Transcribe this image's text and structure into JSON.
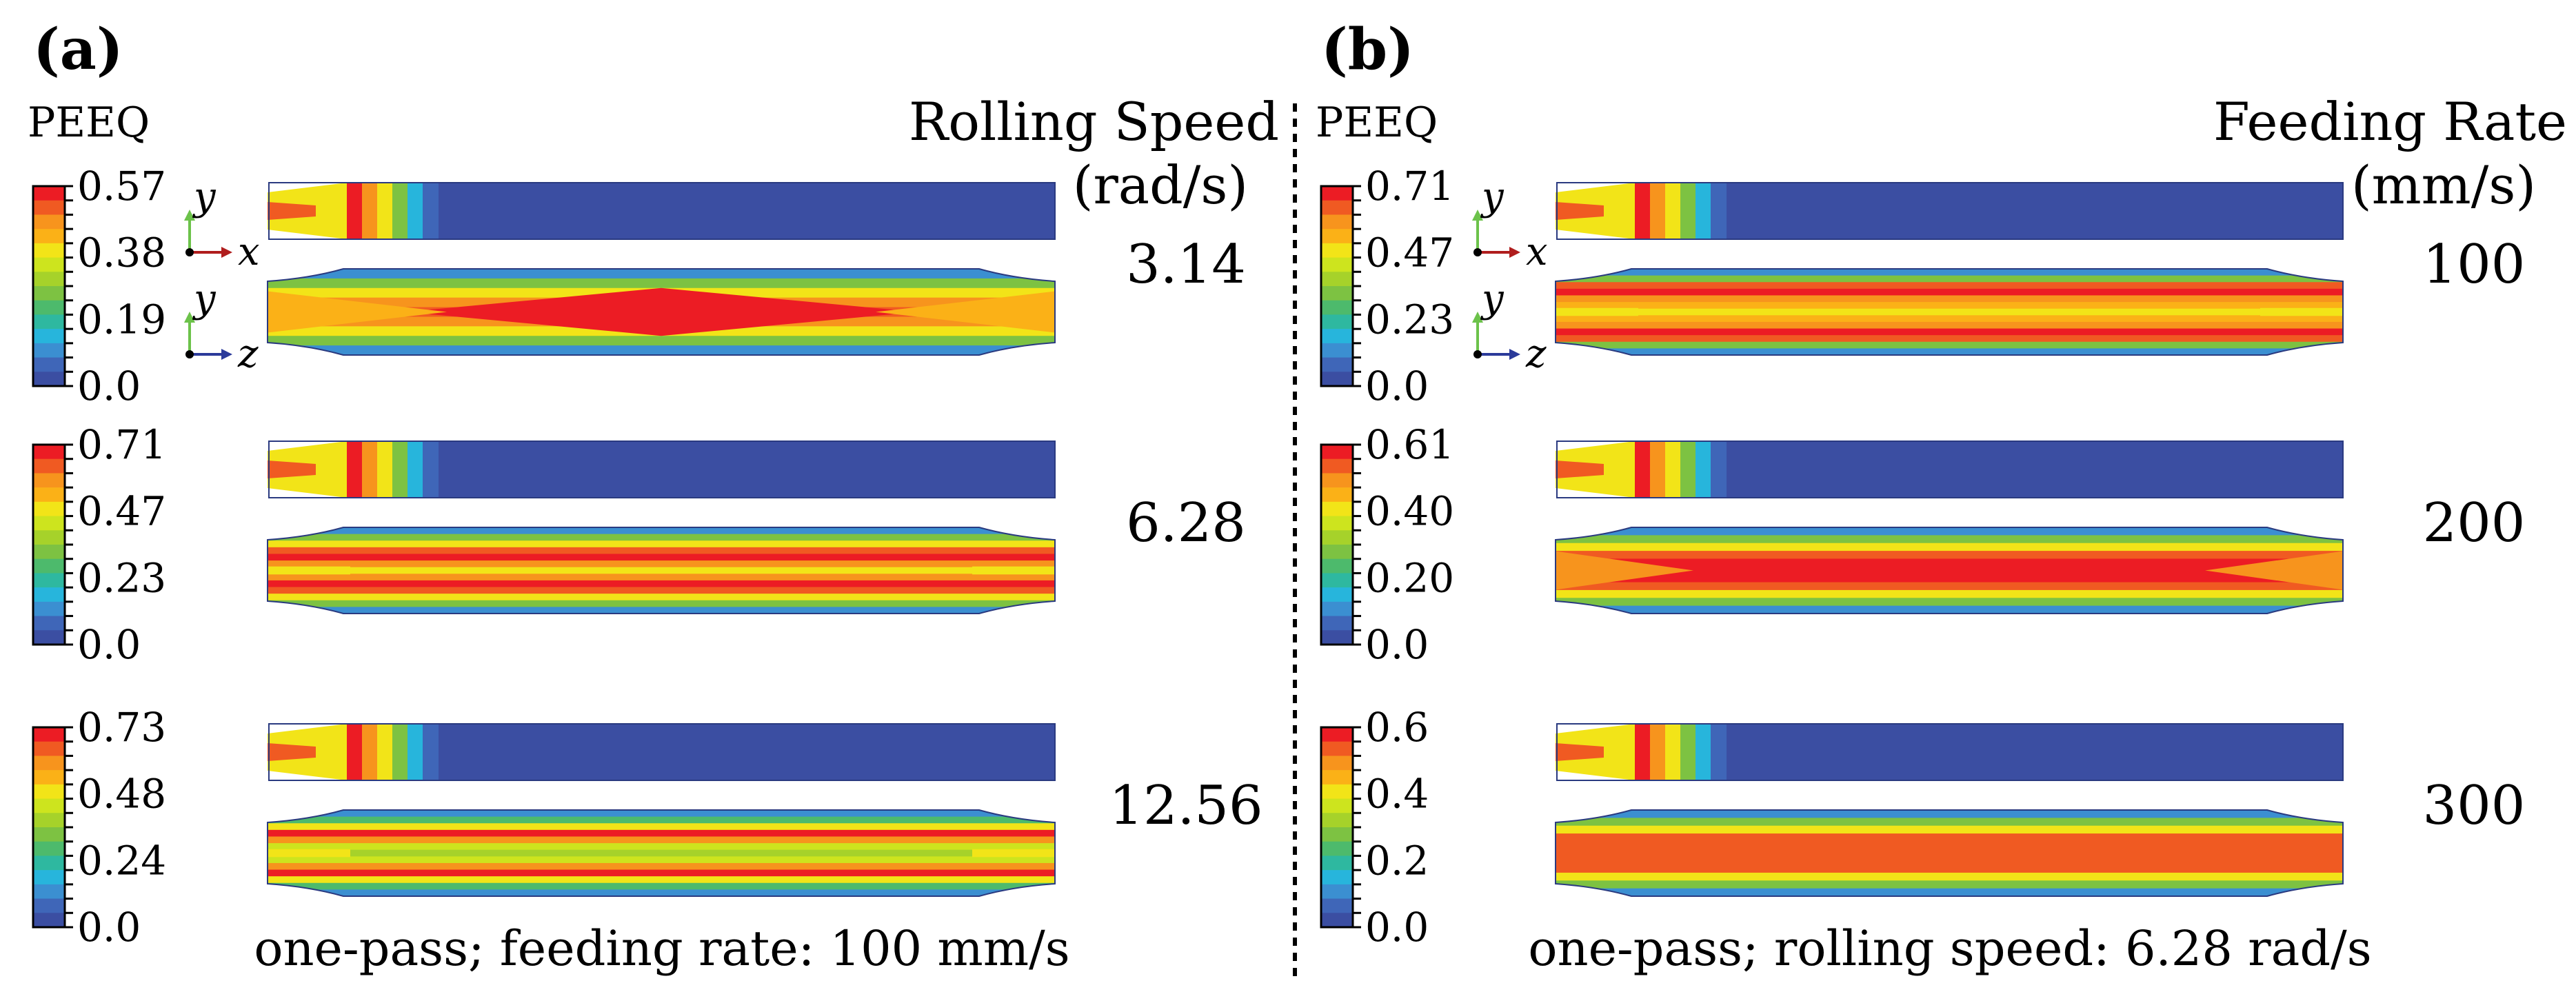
{
  "figure": {
    "legend_title": "PEEQ",
    "colorbar_colors": [
      "#ec1c24",
      "#f05a22",
      "#f7941d",
      "#fbb117",
      "#f2e418",
      "#cde41e",
      "#a6d22a",
      "#7dc242",
      "#4dba6c",
      "#2eb8a0",
      "#27b5dc",
      "#3b8fd1",
      "#3f66b8",
      "#3b4ea2"
    ],
    "axis_labels": {
      "x": "x",
      "y": "y",
      "z": "z"
    },
    "axis_colors": {
      "x": "#b01e1e",
      "y": "#6cc24a",
      "z": "#2b3a9a"
    },
    "panels": [
      {
        "letter": "(a)",
        "header": "Rolling Speed",
        "unit": "(rad/s)",
        "caption": "one-pass; feeding rate: 100 mm/s",
        "rows": [
          {
            "param": "3.14",
            "ticks": [
              "0.57",
              "0.38",
              "0.19",
              "0.0"
            ],
            "side_style": "x-red"
          },
          {
            "param": "6.28",
            "ticks": [
              "0.71",
              "0.47",
              "0.23",
              "0.0"
            ],
            "side_style": "bands-orange"
          },
          {
            "param": "12.56",
            "ticks": [
              "0.73",
              "0.48",
              "0.24",
              "0.0"
            ],
            "side_style": "bands-green"
          }
        ]
      },
      {
        "letter": "(b)",
        "header": "Feeding Rate",
        "unit": "(mm/s)",
        "caption": "one-pass; rolling speed: 6.28 rad/s",
        "rows": [
          {
            "param": "100",
            "ticks": [
              "0.71",
              "0.47",
              "0.23",
              "0.0"
            ],
            "side_style": "bands-yellow"
          },
          {
            "param": "200",
            "ticks": [
              "0.61",
              "0.40",
              "0.20",
              "0.0"
            ],
            "side_style": "red-core"
          },
          {
            "param": "300",
            "ticks": [
              "0.6",
              "0.4",
              "0.2",
              "0.0"
            ],
            "side_style": "flat-orange"
          }
        ]
      }
    ]
  }
}
